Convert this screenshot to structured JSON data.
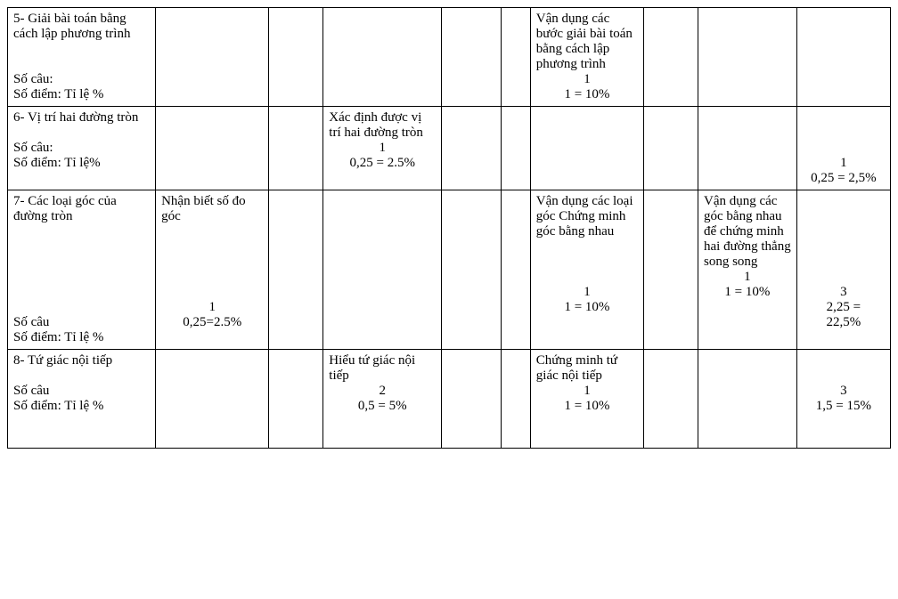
{
  "table": {
    "columns": {
      "topic_width": 150,
      "b": 115,
      "c": 55,
      "d": 120,
      "e": 60,
      "f": 30,
      "g": 115,
      "h": 55,
      "i": 100,
      "j": 95
    },
    "colors": {
      "border": "#000000",
      "background": "#ffffff",
      "text": "#000000"
    },
    "font": {
      "family": "Times New Roman",
      "size_pt": 12
    },
    "rows": [
      {
        "topic_title": "5- Giải bài toán bằng cách lập phương trình",
        "topic_footer1": "Số câu:",
        "topic_footer2": "Số điểm: Tỉ lệ %",
        "b": "",
        "c": "",
        "d": "",
        "e": "",
        "f": "",
        "g_text": "Vận dụng các bước giải bài toán bằng cách lập phương trình",
        "g_count": "1",
        "g_score": "1 = 10%",
        "h": "",
        "i": "",
        "j": ""
      },
      {
        "topic_title": "6- Vị trí hai đường tròn",
        "topic_footer1": "Số câu:",
        "topic_footer2": "Số điểm: Tỉ lệ%",
        "b": "",
        "c": "",
        "d_text": "Xác định được vị trí hai đường tròn",
        "d_count": "1",
        "d_score": "0,25 = 2.5%",
        "e": "",
        "f": "",
        "g": "",
        "h": "",
        "i": "",
        "j_count": "1",
        "j_score": "0,25 = 2,5%"
      },
      {
        "topic_title": "7- Các loại góc của đường tròn",
        "topic_footer1": "Số câu",
        "topic_footer2": "Số điểm: Tỉ lệ %",
        "b_text": "Nhận biết số đo góc",
        "b_count": "1",
        "b_score": "0,25=2.5%",
        "c": "",
        "d": "",
        "e": "",
        "f": "",
        "g_text": "Vận dụng các loại góc Chứng minh góc bằng nhau",
        "g_count": "1",
        "g_score": "1 = 10%",
        "h": "",
        "i_text": "Vận dụng các góc bằng nhau để chứng minh hai đường thẳng song song",
        "i_count": "1",
        "i_score": "1 = 10%",
        "j_count": "3",
        "j_score1": "2,25 =",
        "j_score2": "22,5%"
      },
      {
        "topic_title": "8- Tứ giác nội tiếp",
        "topic_footer1": "Số câu",
        "topic_footer2": "Số điểm: Tỉ lệ %",
        "b": "",
        "c": "",
        "d_text": "Hiểu tứ giác nội tiếp",
        "d_count": "2",
        "d_score": "0,5 = 5%",
        "e": "",
        "f": "",
        "g_text": "Chứng minh tứ giác nội tiếp",
        "g_count": "1",
        "g_score": "1 = 10%",
        "h": "",
        "i": "",
        "j_count": "3",
        "j_score": "1,5 = 15%"
      }
    ]
  }
}
